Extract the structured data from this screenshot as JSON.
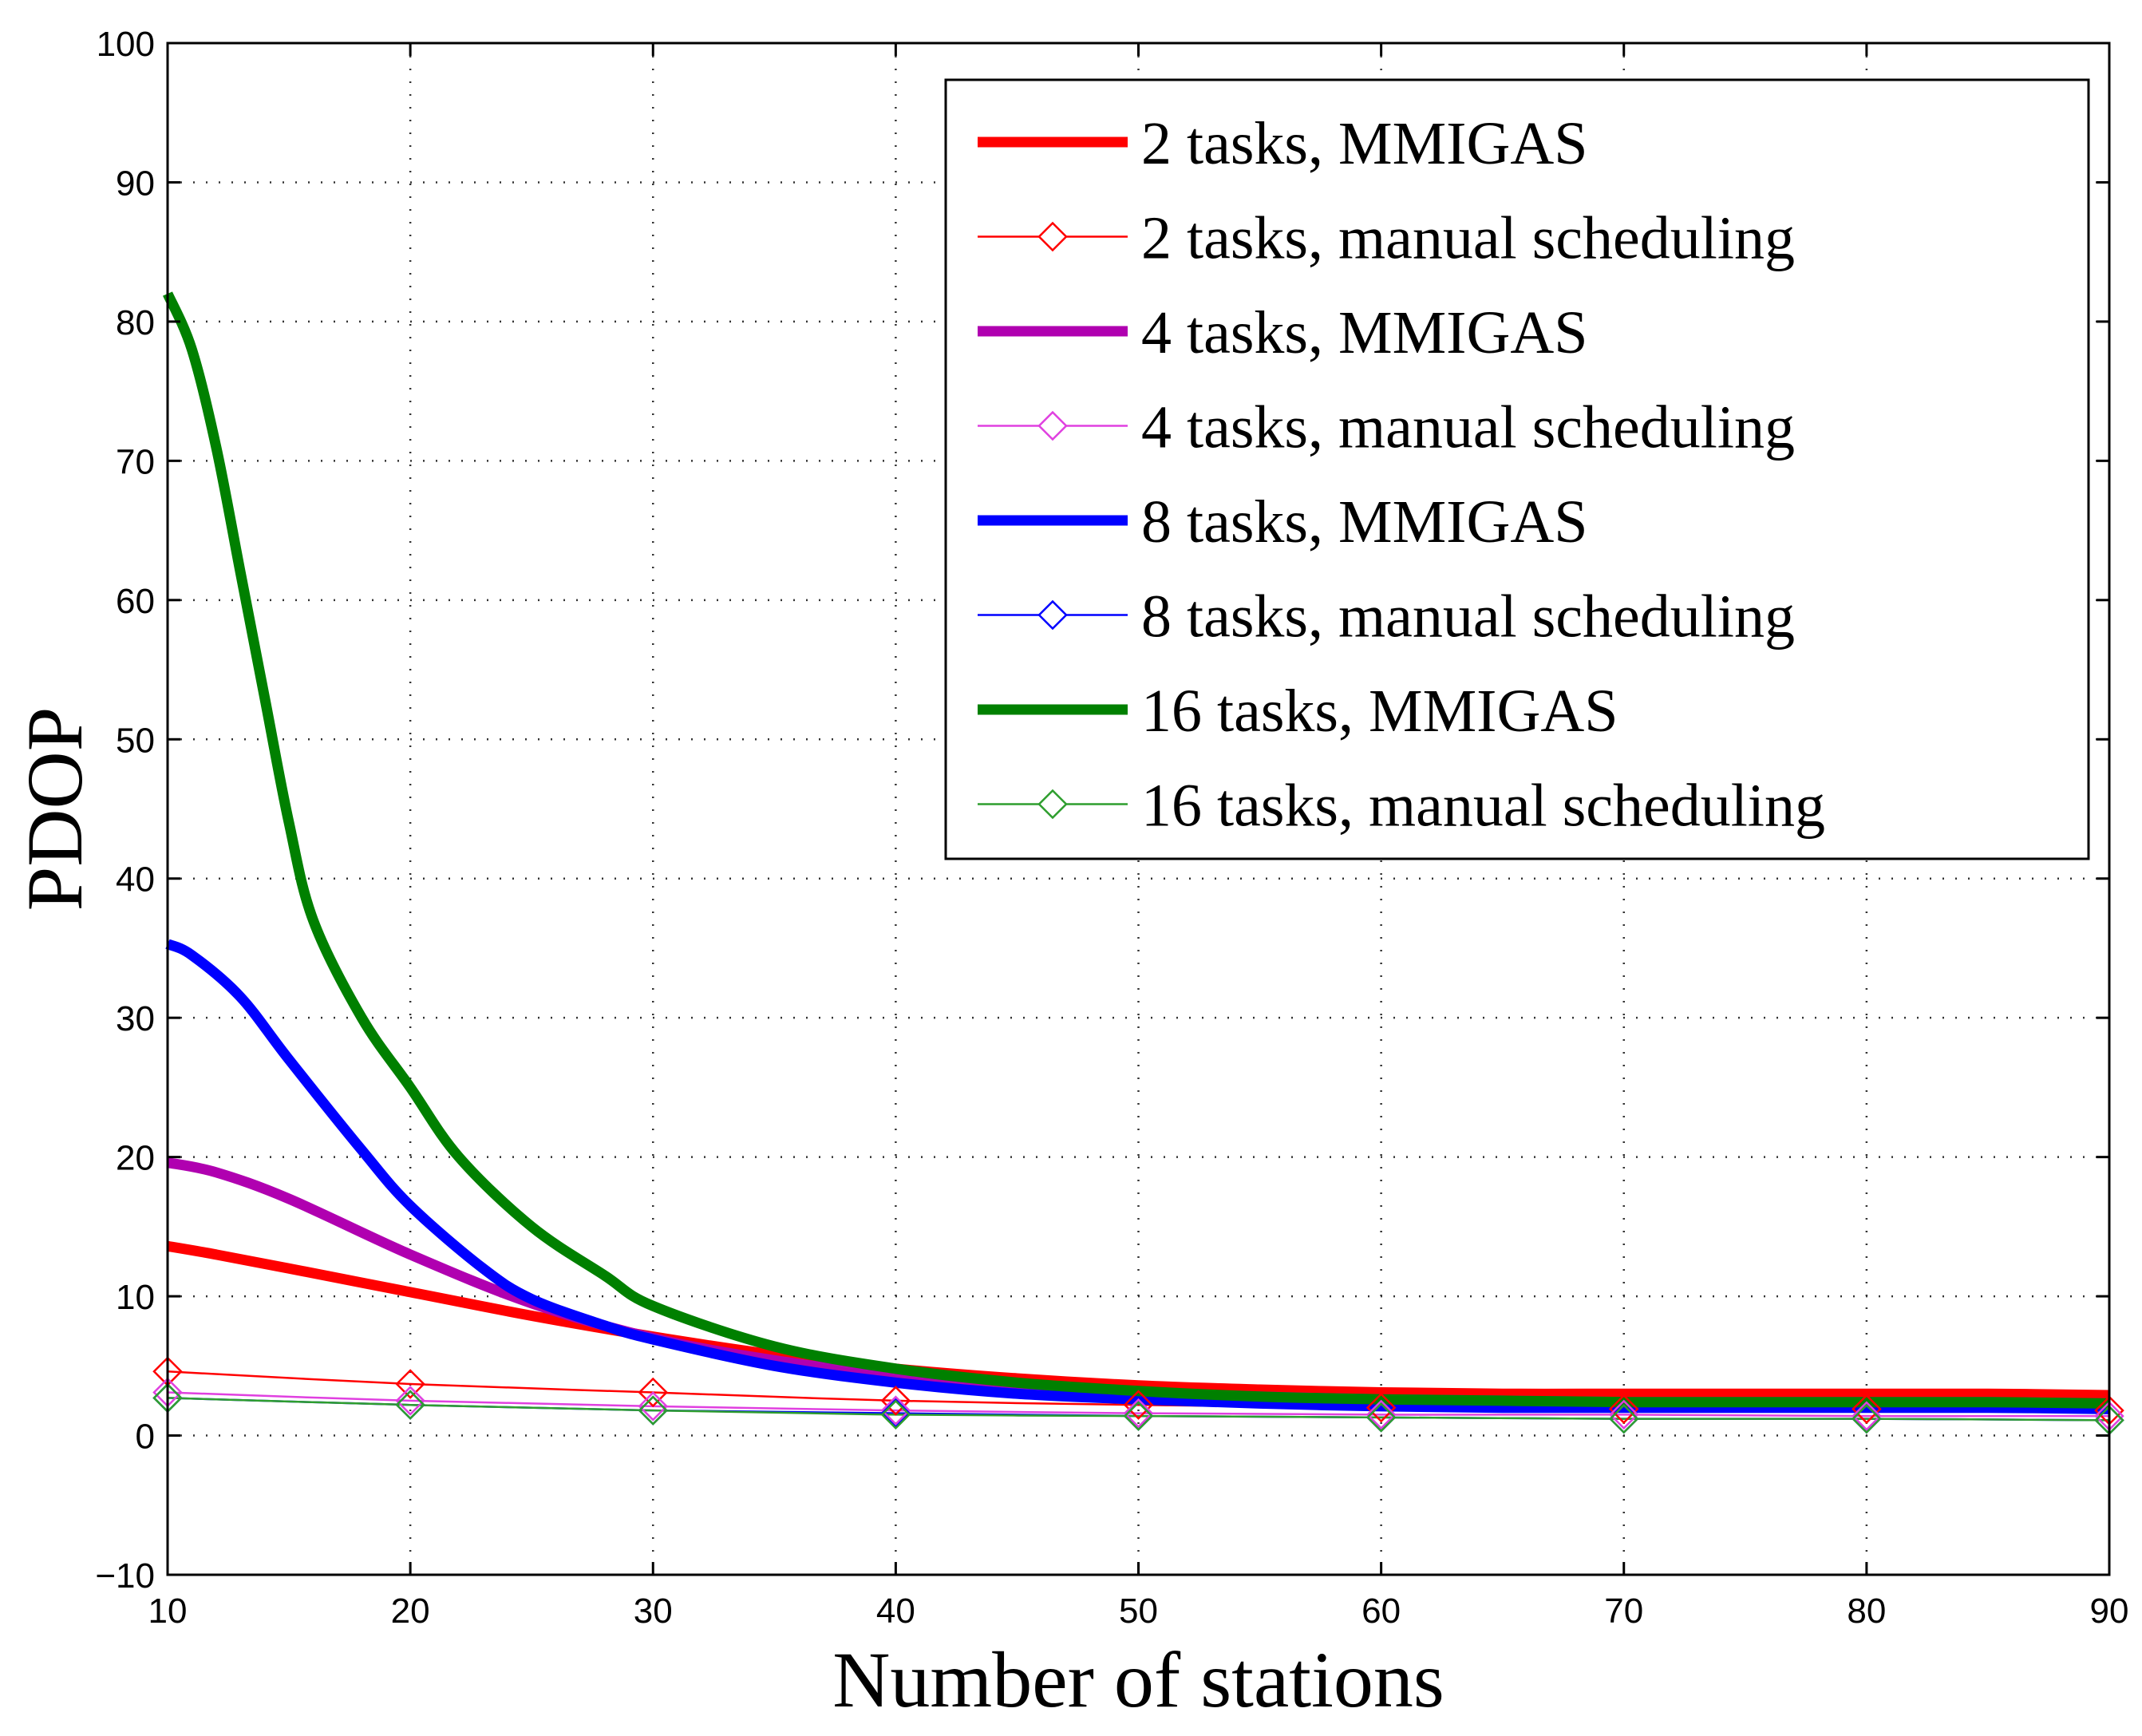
{
  "chart_data": {
    "type": "line",
    "title": "",
    "xlabel": "Number of stations",
    "ylabel": "PDOP",
    "xlim": [
      10,
      90
    ],
    "ylim": [
      -10,
      100
    ],
    "xticks": [
      10,
      20,
      30,
      40,
      50,
      60,
      70,
      80,
      90
    ],
    "yticks": [
      -10,
      0,
      10,
      20,
      30,
      40,
      50,
      60,
      70,
      80,
      90,
      100
    ],
    "ytick_labels": [
      "−10",
      "0",
      "10",
      "20",
      "30",
      "40",
      "50",
      "60",
      "70",
      "80",
      "90",
      "100"
    ],
    "grid": true,
    "legend_position": "top-right",
    "series": [
      {
        "name": "2 tasks, MMIGAS",
        "color": "#ff0000",
        "style": "thick",
        "marker": "none",
        "x": [
          10,
          12,
          15,
          20,
          25,
          30,
          35,
          40,
          45,
          50,
          55,
          60,
          65,
          70,
          75,
          80,
          85,
          90
        ],
        "y": [
          13.6,
          13.0,
          12.0,
          10.3,
          8.6,
          7.1,
          5.8,
          4.8,
          4.1,
          3.6,
          3.3,
          3.1,
          3.0,
          3.0,
          3.0,
          3.0,
          3.0,
          2.9
        ]
      },
      {
        "name": "2 tasks, manual scheduling",
        "color": "#ff0000",
        "style": "thin",
        "marker": "diamond",
        "x": [
          10,
          20,
          30,
          40,
          50,
          60,
          70,
          80,
          90
        ],
        "y": [
          4.6,
          3.7,
          3.1,
          2.5,
          2.2,
          2.0,
          1.9,
          1.9,
          1.8
        ]
      },
      {
        "name": "4 tasks, MMIGAS",
        "color": "#b000b0",
        "style": "thick",
        "marker": "none",
        "x": [
          10,
          12,
          15,
          20,
          25,
          30,
          35,
          40,
          45,
          50,
          55,
          60,
          65,
          70,
          75,
          80,
          85,
          90
        ],
        "y": [
          19.6,
          18.9,
          17.0,
          13.0,
          9.5,
          7.0,
          5.4,
          4.3,
          3.6,
          3.1,
          2.8,
          2.6,
          2.5,
          2.4,
          2.4,
          2.4,
          2.4,
          2.3
        ]
      },
      {
        "name": "4 tasks, manual scheduling",
        "color": "#e040e0",
        "style": "thin",
        "marker": "diamond",
        "x": [
          10,
          20,
          30,
          40,
          50,
          60,
          70,
          80,
          90
        ],
        "y": [
          3.1,
          2.5,
          2.1,
          1.8,
          1.6,
          1.5,
          1.5,
          1.4,
          1.4
        ]
      },
      {
        "name": "8 tasks, MMIGAS",
        "color": "#0000ff",
        "style": "thick",
        "marker": "none",
        "x": [
          10,
          11,
          13,
          15,
          18,
          20,
          23,
          25,
          28,
          30,
          35,
          40,
          45,
          50,
          55,
          60,
          65,
          70,
          75,
          80,
          85,
          90
        ],
        "y": [
          35.3,
          34.5,
          31.5,
          27.0,
          20.5,
          16.5,
          12.0,
          9.8,
          7.9,
          6.9,
          5.0,
          3.8,
          3.0,
          2.6,
          2.3,
          2.1,
          2.0,
          2.0,
          2.0,
          2.0,
          2.0,
          1.9
        ]
      },
      {
        "name": "8 tasks, manual scheduling",
        "color": "#0000ff",
        "style": "thin",
        "marker": "diamond",
        "x": [
          10,
          20,
          30,
          40,
          50,
          60,
          70,
          80,
          90
        ],
        "y": [
          2.7,
          2.2,
          1.8,
          1.6,
          1.4,
          1.3,
          1.2,
          1.2,
          1.1
        ]
      },
      {
        "name": "16 tasks, MMIGAS",
        "color": "#008000",
        "style": "thick",
        "marker": "none",
        "x": [
          10,
          11,
          12,
          13,
          14,
          15,
          16,
          18,
          20,
          22,
          25,
          28,
          30,
          35,
          40,
          45,
          50,
          55,
          60,
          65,
          70,
          75,
          80,
          85,
          90
        ],
        "y": [
          82.0,
          78.0,
          71.0,
          62.0,
          53.0,
          44.0,
          37.0,
          30.0,
          25.0,
          20.0,
          15.0,
          11.5,
          9.3,
          6.4,
          4.8,
          3.8,
          3.2,
          2.8,
          2.6,
          2.5,
          2.4,
          2.4,
          2.4,
          2.4,
          2.3
        ]
      },
      {
        "name": "16 tasks, manual scheduling",
        "color": "#2e9e2e",
        "style": "thin",
        "marker": "diamond",
        "x": [
          10,
          20,
          30,
          40,
          50,
          60,
          70,
          80,
          90
        ],
        "y": [
          2.7,
          2.2,
          1.8,
          1.5,
          1.4,
          1.3,
          1.2,
          1.2,
          1.1
        ]
      }
    ]
  }
}
